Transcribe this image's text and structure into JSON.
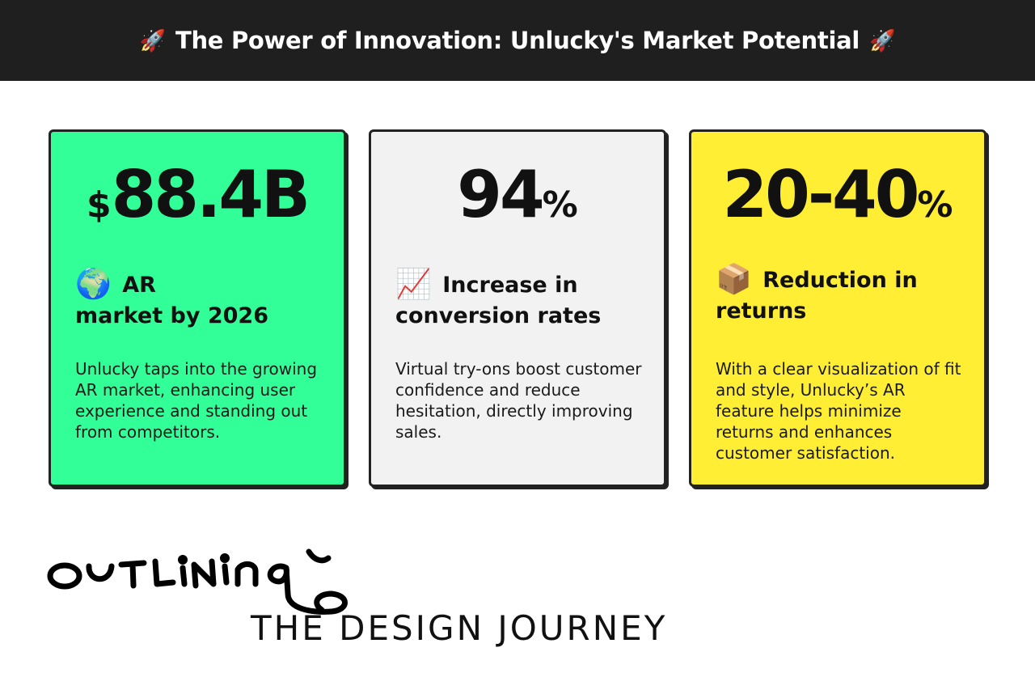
{
  "header": {
    "title": "The Power of Innovation: Unlucky's Market Potential",
    "emoji_left": "🚀",
    "emoji_right": "🚀"
  },
  "cards": [
    {
      "stat_main": "88.4B",
      "stat_prefix": "$",
      "stat_suffix": "",
      "heading_emoji": "🌍",
      "heading_line1": "AR",
      "heading_line2": "market by 2026",
      "description": "Unlucky taps into the growing AR market, enhancing user experience and standing out from competitors.",
      "background": "#33ff99"
    },
    {
      "stat_main": "94",
      "stat_prefix": "",
      "stat_suffix": "%",
      "heading_emoji": "📈",
      "heading_line1": "Increase in",
      "heading_line2": "conversion rates",
      "description": "Virtual try-ons boost customer confidence and reduce hesitation, directly improving sales.",
      "background": "#f2f2f2"
    },
    {
      "stat_main": "20-40",
      "stat_prefix": "",
      "stat_suffix": "%",
      "heading_emoji": "📦",
      "heading_line1": "Reduction in",
      "heading_line2": "returns",
      "description": "With a clear visualization of fit and style, Unlucky’s AR feature helps minimize returns and enhances customer satisfaction.",
      "background": "#ffee33"
    }
  ],
  "footer": {
    "logo_word": "OUTLINING",
    "tagline": "THE DESIGN JOURNEY"
  },
  "colors": {
    "header_bg": "#1f1f1f",
    "border": "#222222"
  }
}
